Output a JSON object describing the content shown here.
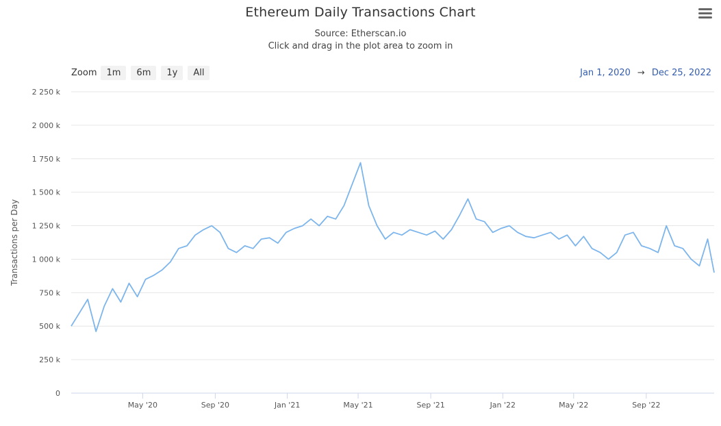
{
  "header": {
    "title": "Ethereum Daily Transactions Chart",
    "source": "Source: Etherscan.io",
    "hint": "Click and drag in the plot area to zoom in",
    "menu_icon": "hamburger-menu-icon"
  },
  "zoom": {
    "label": "Zoom",
    "buttons": [
      "1m",
      "6m",
      "1y",
      "All"
    ]
  },
  "range": {
    "from": "Jan 1, 2020",
    "arrow": "→",
    "to": "Dec 25, 2022"
  },
  "colors": {
    "series": "#7cb5ec",
    "grid": "#e6e6e6",
    "range_text": "#335cad"
  },
  "chart_data": {
    "type": "line",
    "title": "Ethereum Daily Transactions Chart",
    "subtitle": "Source: Etherscan.io",
    "ylabel": "Transactions per Day",
    "xlabel": "",
    "xlim": [
      "2020-01-01",
      "2022-12-25"
    ],
    "ylim": [
      0,
      2250000
    ],
    "yticks": [
      0,
      250000,
      500000,
      750000,
      1000000,
      1250000,
      1500000,
      1750000,
      2000000,
      2250000
    ],
    "ytick_labels": [
      "0",
      "250 k",
      "500 k",
      "750 k",
      "1 000 k",
      "1 250 k",
      "1 500 k",
      "1 750 k",
      "2 000 k",
      "2 250 k"
    ],
    "xticks": [
      "2020-05-01",
      "2020-09-01",
      "2021-01-01",
      "2021-05-01",
      "2021-09-01",
      "2022-01-01",
      "2022-05-01",
      "2022-09-01"
    ],
    "xtick_labels": [
      "May '20",
      "Sep '20",
      "Jan '21",
      "May '21",
      "Sep '21",
      "Jan '22",
      "May '22",
      "Sep '22"
    ],
    "grid": true,
    "legend": false,
    "series": [
      {
        "x": [
          "2020-01-01",
          "2020-01-15",
          "2020-01-29",
          "2020-02-12",
          "2020-02-26",
          "2020-03-11",
          "2020-03-25",
          "2020-04-08",
          "2020-04-22",
          "2020-05-06",
          "2020-05-20",
          "2020-06-03",
          "2020-06-17",
          "2020-07-01",
          "2020-07-15",
          "2020-07-29",
          "2020-08-12",
          "2020-08-26",
          "2020-09-09",
          "2020-09-23",
          "2020-10-07",
          "2020-10-21",
          "2020-11-04",
          "2020-11-18",
          "2020-12-02",
          "2020-12-16",
          "2020-12-30",
          "2021-01-13",
          "2021-01-27",
          "2021-02-10",
          "2021-02-24",
          "2021-03-10",
          "2021-03-24",
          "2021-04-07",
          "2021-04-21",
          "2021-05-05",
          "2021-05-19",
          "2021-06-02",
          "2021-06-16",
          "2021-06-30",
          "2021-07-14",
          "2021-07-28",
          "2021-08-11",
          "2021-08-25",
          "2021-09-08",
          "2021-09-22",
          "2021-10-06",
          "2021-10-20",
          "2021-11-03",
          "2021-11-17",
          "2021-12-01",
          "2021-12-15",
          "2021-12-29",
          "2022-01-12",
          "2022-01-26",
          "2022-02-09",
          "2022-02-23",
          "2022-03-09",
          "2022-03-23",
          "2022-04-06",
          "2022-04-20",
          "2022-05-04",
          "2022-05-18",
          "2022-06-01",
          "2022-06-15",
          "2022-06-29",
          "2022-07-13",
          "2022-07-27",
          "2022-08-10",
          "2022-08-24",
          "2022-09-07",
          "2022-09-21",
          "2022-10-05",
          "2022-10-19",
          "2022-11-02",
          "2022-11-16",
          "2022-11-30",
          "2022-12-14",
          "2022-12-25"
        ],
        "values": [
          500000,
          600000,
          700000,
          460000,
          650000,
          780000,
          680000,
          820000,
          720000,
          850000,
          880000,
          920000,
          980000,
          1080000,
          1100000,
          1180000,
          1220000,
          1250000,
          1200000,
          1080000,
          1050000,
          1100000,
          1080000,
          1150000,
          1160000,
          1120000,
          1200000,
          1230000,
          1250000,
          1300000,
          1250000,
          1320000,
          1300000,
          1400000,
          1560000,
          1720000,
          1400000,
          1250000,
          1150000,
          1200000,
          1180000,
          1220000,
          1200000,
          1180000,
          1210000,
          1150000,
          1220000,
          1330000,
          1450000,
          1300000,
          1280000,
          1200000,
          1230000,
          1250000,
          1200000,
          1170000,
          1160000,
          1180000,
          1200000,
          1150000,
          1180000,
          1100000,
          1170000,
          1080000,
          1050000,
          1000000,
          1050000,
          1180000,
          1200000,
          1100000,
          1080000,
          1050000,
          1250000,
          1100000,
          1080000,
          1000000,
          950000,
          1150000,
          900000
        ]
      }
    ]
  }
}
